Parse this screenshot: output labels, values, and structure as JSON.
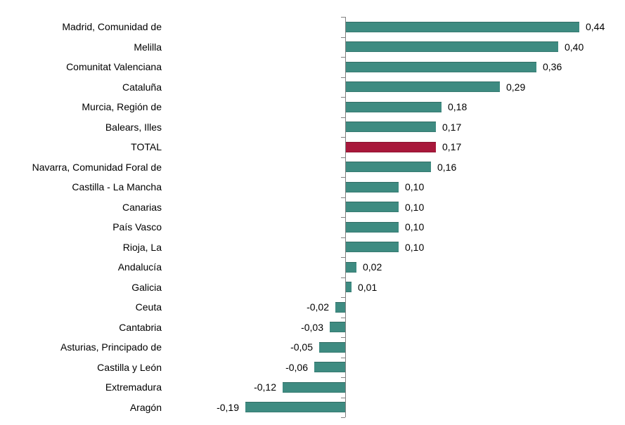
{
  "chart_data": {
    "type": "bar",
    "orientation": "horizontal",
    "title": "",
    "xlabel": "",
    "ylabel": "",
    "grid": false,
    "legend": null,
    "xlim": [
      -0.19,
      0.44
    ],
    "categories": [
      "Madrid, Comunidad de",
      "Melilla",
      "Comunitat Valenciana",
      "Cataluña",
      "Murcia, Región de",
      "Balears, Illes",
      "TOTAL",
      "Navarra, Comunidad Foral de",
      "Castilla - La Mancha",
      "Canarias",
      "País Vasco",
      "Rioja, La",
      "Andalucía",
      "Galicia",
      "Ceuta",
      "Cantabria",
      "Asturias, Principado de",
      "Castilla y León",
      "Extremadura",
      "Aragón"
    ],
    "values": [
      0.44,
      0.4,
      0.36,
      0.29,
      0.18,
      0.17,
      0.17,
      0.16,
      0.1,
      0.1,
      0.1,
      0.1,
      0.02,
      0.01,
      -0.02,
      -0.03,
      -0.05,
      -0.06,
      -0.12,
      -0.19
    ],
    "value_labels": [
      "0,44",
      "0,40",
      "0,36",
      "0,29",
      "0,18",
      "0,17",
      "0,17",
      "0,16",
      "0,10",
      "0,10",
      "0,10",
      "0,10",
      "0,02",
      "0,01",
      "-0,02",
      "-0,03",
      "-0,05",
      "-0,06",
      "-0,12",
      "-0,19"
    ],
    "highlight_category": "TOTAL",
    "highlight_index": 6,
    "colors": {
      "bar": "#3E8B81",
      "highlight": "#A8183B",
      "axis": "#808080",
      "text": "#000000",
      "background": "#FFFFFF"
    }
  }
}
